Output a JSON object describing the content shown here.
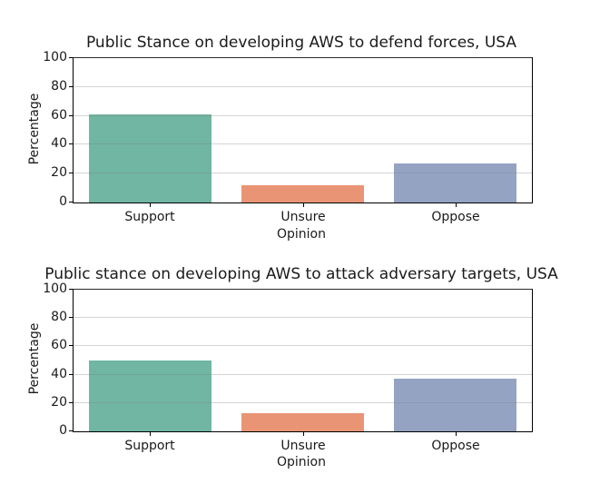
{
  "figure": {
    "background": "#ffffff",
    "text_color": "#1a1a1a",
    "spine_color": "#000000",
    "grid_color": "#d4d4d4"
  },
  "chart_data": [
    {
      "type": "bar",
      "title": "Public Stance on developing AWS to defend forces, USA",
      "xlabel": "Opinion",
      "ylabel": "Percentage",
      "categories": [
        "Support",
        "Unsure",
        "Oppose"
      ],
      "values": [
        61,
        12,
        27
      ],
      "bar_colors": [
        "#70b6a2",
        "#e99575",
        "#95a3c3"
      ],
      "ylim": [
        0,
        100
      ],
      "yticks": [
        0,
        20,
        40,
        60,
        80,
        100
      ],
      "grid": "horizontal",
      "legend_position": "none"
    },
    {
      "type": "bar",
      "title": "Public stance on developing AWS to attack adversary targets, USA",
      "xlabel": "Opinion",
      "ylabel": "Percentage",
      "categories": [
        "Support",
        "Unsure",
        "Oppose"
      ],
      "values": [
        50,
        13,
        37
      ],
      "bar_colors": [
        "#70b6a2",
        "#e99575",
        "#95a3c3"
      ],
      "ylim": [
        0,
        100
      ],
      "yticks": [
        0,
        20,
        40,
        60,
        80,
        100
      ],
      "grid": "horizontal",
      "legend_position": "none"
    }
  ]
}
